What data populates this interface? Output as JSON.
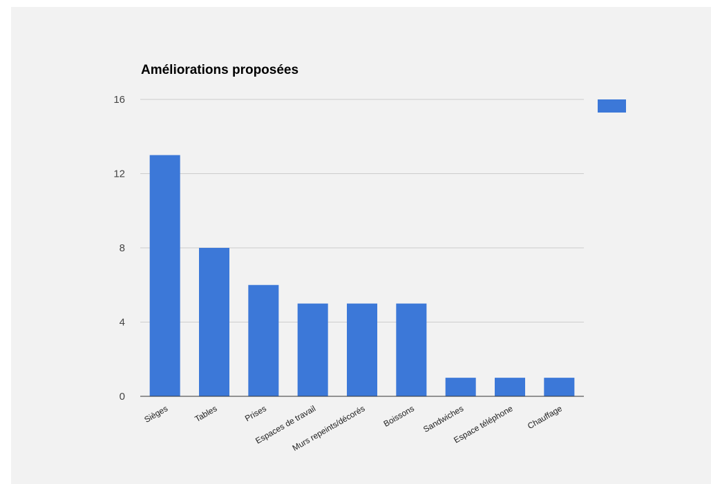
{
  "chart_data": {
    "type": "bar",
    "title": "Améliorations proposées",
    "xlabel": "",
    "ylabel": "",
    "categories": [
      "Sièges",
      "Tables",
      "Prises",
      "Espaces de travail",
      "Murs repeints/décorés",
      "Boissons",
      "Sandwiches",
      "Espace téléphone",
      "Chauffage"
    ],
    "series": [
      {
        "values": [
          13,
          8,
          6,
          5,
          5,
          5,
          1,
          1,
          1
        ],
        "color": "#3c78d8"
      }
    ],
    "ylim": [
      0,
      16
    ],
    "yticks": [
      0,
      4,
      8,
      12,
      16
    ],
    "grid": true,
    "legend": {
      "position": "right"
    },
    "colors": {
      "bar": "#3c78d8",
      "grid": "#cccccc",
      "axis": "#333333",
      "background": "#f2f2f2"
    }
  }
}
